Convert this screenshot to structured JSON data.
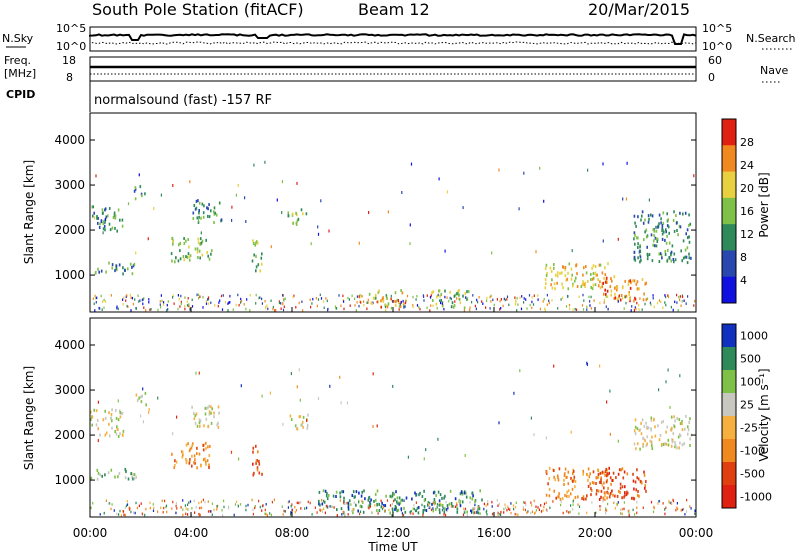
{
  "header": {
    "station": "South Pole Station (fitACF)",
    "beam": "Beam 12",
    "date": "20/Mar/2015"
  },
  "status_panels": {
    "nsky_label": "N.Sky",
    "nsky_ticks": [
      "10^5",
      "10^0"
    ],
    "nsearch_label": "N.Search",
    "freq_label_1": "Freq.",
    "freq_label_2": "[MHz]",
    "freq_ticks": [
      "18",
      "8"
    ],
    "nave_label": "Nave",
    "nave_ticks": [
      "60",
      "0"
    ],
    "cpid_label": "CPID",
    "cpid_text": "normalsound (fast) -157 RF"
  },
  "chart_data": [
    {
      "type": "heatmap",
      "name": "power",
      "ylabel": "Slant Range [km]",
      "xlabel": "",
      "ylim": [
        180,
        4600
      ],
      "yticks": [
        "4000",
        "3000",
        "2000",
        "1000"
      ],
      "colorbar_label": "Power [dB]",
      "colorbar_ticks": [
        "28",
        "24",
        "20",
        "16",
        "12",
        "8",
        "4"
      ],
      "colors": [
        "#1010e0",
        "#2848b0",
        "#2f8a5a",
        "#7fc048",
        "#e8d040",
        "#f08a20",
        "#e02010"
      ],
      "blobs": [
        {
          "t": [
            0.0,
            1.3
          ],
          "r": [
            2000,
            2600
          ],
          "lvl": 2
        },
        {
          "t": [
            0.0,
            1.8
          ],
          "r": [
            1050,
            1300
          ],
          "lvl": 2
        },
        {
          "t": [
            1.7,
            2.2
          ],
          "r": [
            2700,
            3000
          ],
          "lvl": 2
        },
        {
          "t": [
            3.2,
            4.8
          ],
          "r": [
            1300,
            1850
          ],
          "lvl": 3
        },
        {
          "t": [
            4.0,
            5.2
          ],
          "r": [
            2200,
            2700
          ],
          "lvl": 2
        },
        {
          "t": [
            6.4,
            6.8
          ],
          "r": [
            1100,
            1800
          ],
          "lvl": 3
        },
        {
          "t": [
            7.8,
            8.6
          ],
          "r": [
            2150,
            2500
          ],
          "lvl": 3
        },
        {
          "t": [
            11.0,
            12.5
          ],
          "r": [
            300,
            700
          ],
          "lvl": 4
        },
        {
          "t": [
            13.5,
            15.0
          ],
          "r": [
            300,
            700
          ],
          "lvl": 3
        },
        {
          "t": [
            18.0,
            20.5
          ],
          "r": [
            700,
            1300
          ],
          "lvl": 4
        },
        {
          "t": [
            20.0,
            22.0
          ],
          "r": [
            450,
            1000
          ],
          "lvl": 5
        },
        {
          "t": [
            21.5,
            23.8
          ],
          "r": [
            1300,
            2450
          ],
          "lvl": 2
        }
      ]
    },
    {
      "type": "heatmap",
      "name": "velocity",
      "ylabel": "Slant Range [km]",
      "xlabel": "Time UT",
      "ylim": [
        180,
        4600
      ],
      "yticks": [
        "4000",
        "3000",
        "2000",
        "1000"
      ],
      "xticks": [
        "00:00",
        "04:00",
        "08:00",
        "12:00",
        "16:00",
        "20:00",
        "00:00"
      ],
      "xlim": [
        0,
        24
      ],
      "colorbar_label": "Velocity [m s⁻¹]",
      "colorbar_ticks": [
        "1000",
        "500",
        "100",
        "25",
        "-25",
        "-100",
        "-500",
        "-1000"
      ],
      "colors": [
        "#1030c0",
        "#2f8a5a",
        "#7fc048",
        "#c8c8c0",
        "#f5b040",
        "#f08a20",
        "#e04010",
        "#e02010"
      ],
      "blobs": [
        {
          "t": [
            0.0,
            1.3
          ],
          "r": [
            2000,
            2600
          ],
          "lvl": 3
        },
        {
          "t": [
            0.0,
            1.8
          ],
          "r": [
            1050,
            1300
          ],
          "lvl": 2
        },
        {
          "t": [
            1.7,
            2.2
          ],
          "r": [
            2700,
            3000
          ],
          "lvl": 3
        },
        {
          "t": [
            3.2,
            4.8
          ],
          "r": [
            1300,
            1850
          ],
          "lvl": 5
        },
        {
          "t": [
            4.0,
            5.2
          ],
          "r": [
            2200,
            2700
          ],
          "lvl": 3
        },
        {
          "t": [
            6.4,
            6.8
          ],
          "r": [
            1100,
            1800
          ],
          "lvl": 6
        },
        {
          "t": [
            7.8,
            8.6
          ],
          "r": [
            2150,
            2500
          ],
          "lvl": 3
        },
        {
          "t": [
            9.0,
            15.5
          ],
          "r": [
            300,
            800
          ],
          "lvl": 1
        },
        {
          "t": [
            18.0,
            20.5
          ],
          "r": [
            600,
            1300
          ],
          "lvl": 5
        },
        {
          "t": [
            20.0,
            22.0
          ],
          "r": [
            600,
            1300
          ],
          "lvl": 6
        },
        {
          "t": [
            21.5,
            23.8
          ],
          "r": [
            1700,
            2450
          ],
          "lvl": 3
        }
      ]
    }
  ]
}
